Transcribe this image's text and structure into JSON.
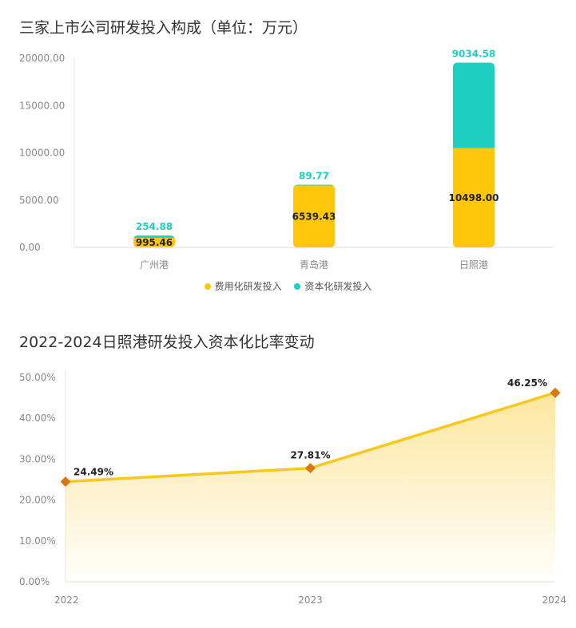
{
  "chart_data": [
    {
      "type": "bar",
      "stacked": true,
      "title": "三家上市公司研发投入构成（单位：万元）",
      "categories": [
        "广州港",
        "青岛港",
        "日照港"
      ],
      "series": [
        {
          "name": "费用化研发投入",
          "color": "#ffc60a",
          "values": [
            995.46,
            6539.43,
            10498.0
          ],
          "labels": [
            "995.46",
            "6539.43",
            "10498.00"
          ]
        },
        {
          "name": "资本化研发投入",
          "color": "#1fcfc0",
          "values": [
            254.88,
            89.77,
            9034.58
          ],
          "labels": [
            "254.88",
            "89.77",
            "9034.58"
          ]
        }
      ],
      "ylim": [
        0,
        20000
      ],
      "yticks": [
        "0.00",
        "5000.00",
        "10000.00",
        "15000.00",
        "20000.00"
      ],
      "legend": "bottom"
    },
    {
      "type": "area",
      "title": "2022-2024日照港研发投入资本化比率变动",
      "categories": [
        "2022",
        "2023",
        "2024"
      ],
      "series": [
        {
          "values": [
            24.49,
            27.81,
            46.25
          ],
          "labels": [
            "24.49%",
            "27.81%",
            "46.25%"
          ],
          "color": "#f8c81e",
          "marker_color": "#d9770e"
        }
      ],
      "ylim": [
        0,
        50
      ],
      "yticks": [
        "0.00%",
        "10.00%",
        "20.00%",
        "30.00%",
        "40.00%",
        "50.00%"
      ]
    }
  ]
}
